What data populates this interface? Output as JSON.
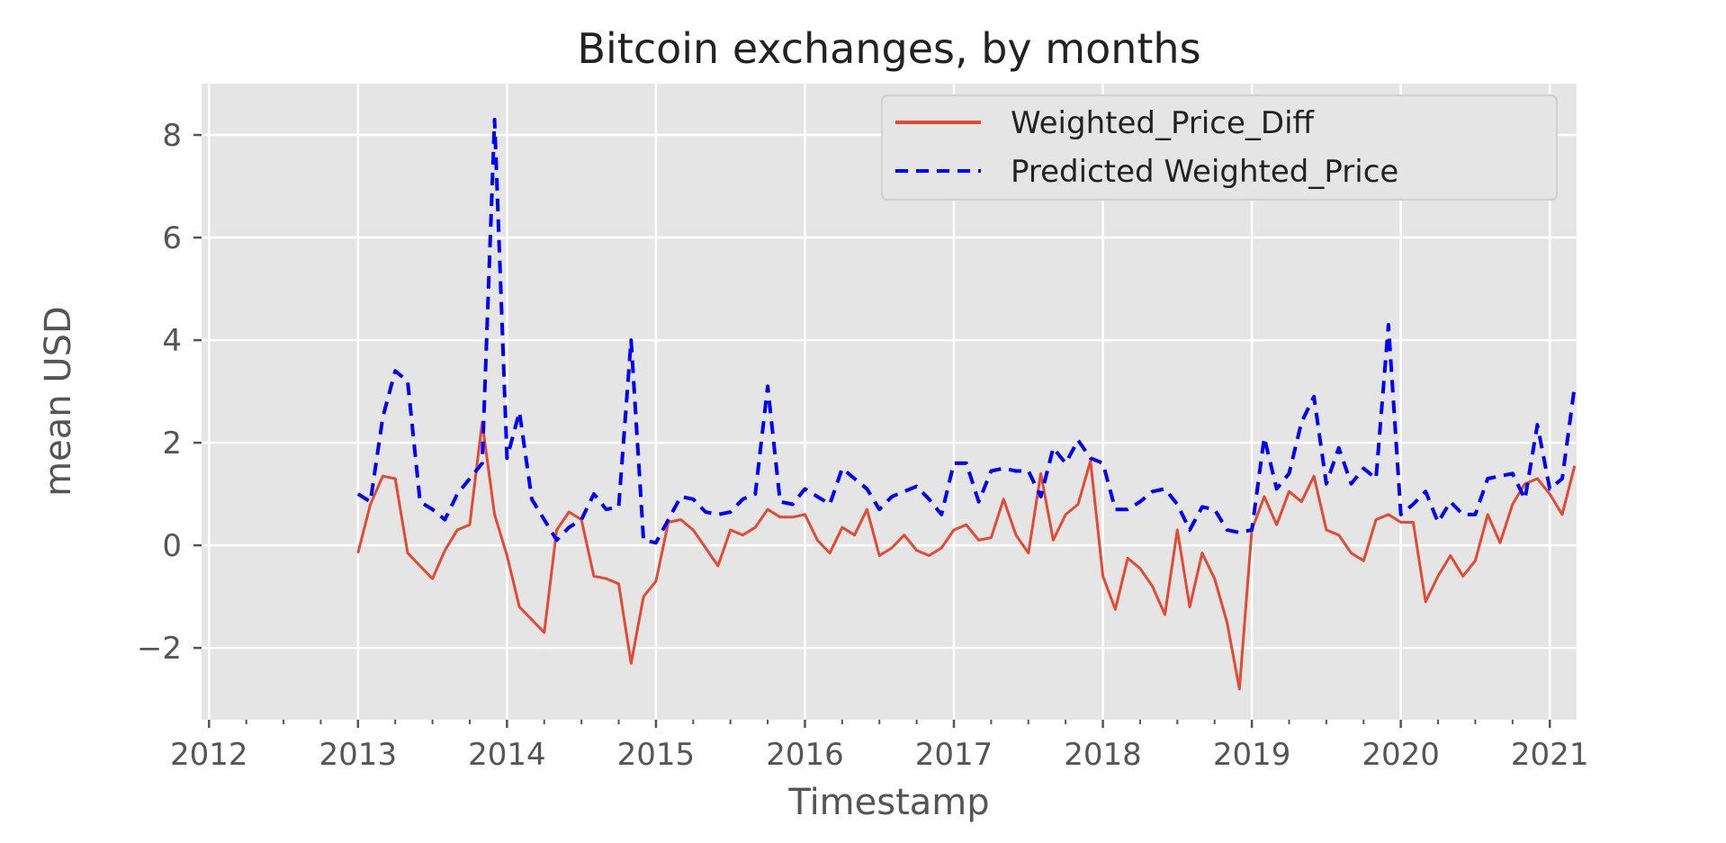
{
  "chart_data": {
    "type": "line",
    "title": "Bitcoin exchanges, by months",
    "xlabel": "Timestamp",
    "ylabel": "mean USD",
    "xlim": [
      2011.95,
      2021.18
    ],
    "ylim": [
      -3.4,
      9.0
    ],
    "x_ticks": [
      2012,
      2013,
      2014,
      2015,
      2016,
      2017,
      2018,
      2019,
      2020,
      2021
    ],
    "y_ticks": [
      -2,
      0,
      2,
      4,
      6,
      8
    ],
    "x_tick_labels": [
      "2012",
      "2013",
      "2014",
      "2015",
      "2016",
      "2017",
      "2018",
      "2019",
      "2020",
      "2021"
    ],
    "y_tick_labels": [
      "−2",
      "0",
      "2",
      "4",
      "6",
      "8"
    ],
    "grid": true,
    "legend_position": "top-right",
    "x_start": 2013.0,
    "x_step_months": 1,
    "series": [
      {
        "name": "Weighted_Price_Diff",
        "color": "#e24a33",
        "dash": "solid",
        "values": [
          -0.15,
          0.8,
          1.35,
          1.3,
          -0.15,
          -0.4,
          -0.65,
          -0.1,
          0.3,
          0.4,
          2.4,
          0.6,
          -0.2,
          -1.2,
          -1.45,
          -1.7,
          0.3,
          0.65,
          0.5,
          -0.6,
          -0.65,
          -0.75,
          -2.3,
          -1.0,
          -0.7,
          0.45,
          0.5,
          0.3,
          -0.05,
          -0.4,
          0.3,
          0.2,
          0.35,
          0.7,
          0.55,
          0.55,
          0.6,
          0.1,
          -0.15,
          0.35,
          0.2,
          0.7,
          -0.2,
          -0.05,
          0.2,
          -0.1,
          -0.2,
          -0.05,
          0.3,
          0.4,
          0.1,
          0.15,
          0.9,
          0.2,
          -0.15,
          1.4,
          0.1,
          0.6,
          0.8,
          1.65,
          -0.6,
          -1.25,
          -0.25,
          -0.45,
          -0.8,
          -1.35,
          0.3,
          -1.2,
          -0.15,
          -0.65,
          -1.5,
          -2.8,
          0.3,
          0.95,
          0.4,
          1.05,
          0.85,
          1.35,
          0.3,
          0.2,
          -0.15,
          -0.3,
          0.5,
          0.6,
          0.45,
          0.45,
          -1.1,
          -0.6,
          -0.2,
          -0.6,
          -0.3,
          0.6,
          0.05,
          0.8,
          1.2,
          1.3,
          1.0,
          0.6,
          1.55
        ]
      },
      {
        "name": "Predicted Weighted_Price",
        "color": "#0000ff",
        "dash": "dashed",
        "values": [
          1.0,
          0.85,
          2.5,
          3.4,
          3.2,
          0.85,
          0.7,
          0.5,
          1.0,
          1.3,
          1.6,
          8.3,
          1.7,
          2.6,
          0.9,
          0.5,
          0.1,
          0.35,
          0.5,
          1.0,
          0.7,
          0.75,
          4.0,
          0.1,
          0.05,
          0.5,
          0.95,
          0.9,
          0.65,
          0.6,
          0.65,
          0.9,
          1.0,
          3.1,
          0.85,
          0.8,
          1.1,
          0.95,
          0.8,
          1.5,
          1.3,
          1.1,
          0.7,
          0.95,
          1.05,
          1.15,
          0.9,
          0.6,
          1.6,
          1.6,
          0.85,
          1.45,
          1.5,
          1.45,
          1.45,
          0.95,
          1.9,
          1.6,
          2.05,
          1.7,
          1.6,
          0.7,
          0.7,
          0.85,
          1.05,
          1.1,
          0.8,
          0.3,
          0.75,
          0.7,
          0.3,
          0.25,
          0.3,
          2.1,
          1.1,
          1.4,
          2.4,
          2.9,
          1.2,
          1.9,
          1.2,
          1.5,
          1.3,
          4.3,
          0.6,
          0.8,
          1.05,
          0.45,
          0.85,
          0.6,
          0.6,
          1.3,
          1.35,
          1.4,
          0.9,
          2.35,
          1.1,
          1.3,
          3.1
        ]
      }
    ]
  }
}
